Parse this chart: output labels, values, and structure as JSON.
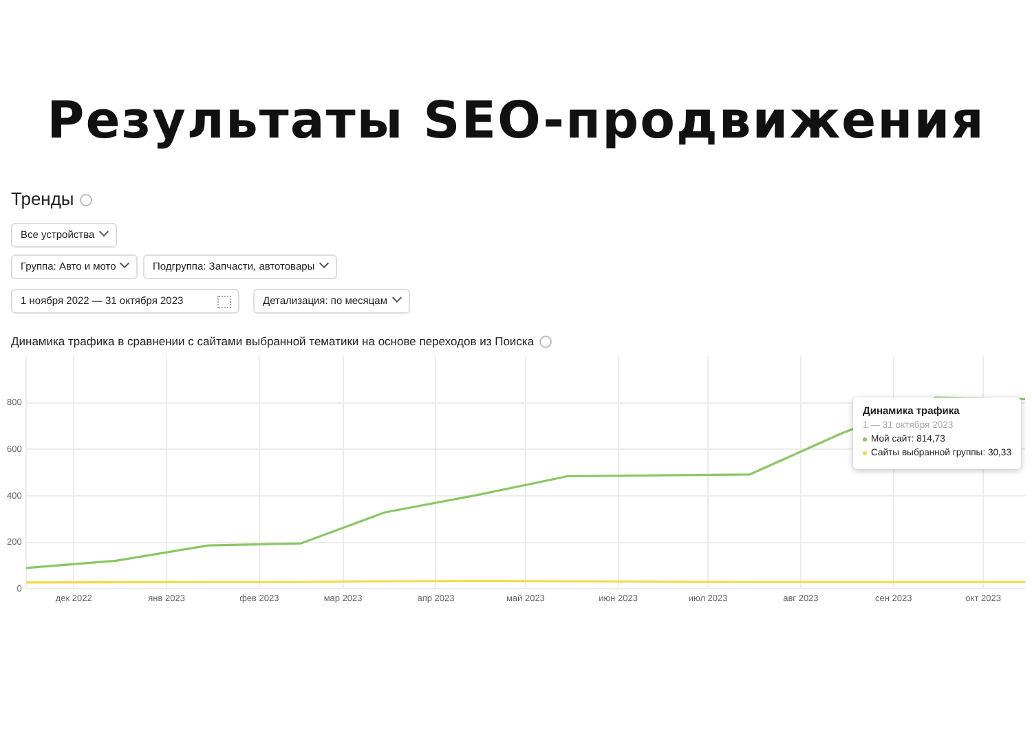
{
  "chart_data": {
    "type": "line",
    "title": "Результаты SEO-продвижения",
    "subtitle": "Тренды",
    "annotations": [
      "Все устройства",
      "Группа: Авто и мото",
      "Подгруппа: Запчасти, автотовары",
      "1 ноября 2022 — 31 октября 2023",
      "Детализация: по месяцам",
      "Динамика трафика в сравнении с сайтами выбранной тематики на основе переходов из Поиска",
      "Динамика трафика",
      "1 — 31 октября 2023",
      "Мой сайт: 814,73",
      "Сайты выбранной группы: 30,33"
    ],
    "grid": true,
    "x": [
      "2022-11-15",
      "2022-12-15",
      "2023-01-15",
      "2023-02-15",
      "2023-03-15",
      "2023-04-15",
      "2023-05-15",
      "2023-06-15",
      "2023-07-15",
      "2023-08-15",
      "2023-09-15",
      "2023-10-15"
    ],
    "xlim": [
      "2022-11-15",
      "2023-10-15"
    ],
    "xticks": [
      {
        "value": "2022-12-01",
        "label": "дек 2022"
      },
      {
        "value": "2023-01-01",
        "label": "янв 2023"
      },
      {
        "value": "2023-02-01",
        "label": "фев 2023"
      },
      {
        "value": "2023-03-01",
        "label": "мар 2023"
      },
      {
        "value": "2023-04-01",
        "label": "апр 2023"
      },
      {
        "value": "2023-05-01",
        "label": "май 2023"
      },
      {
        "value": "2023-06-01",
        "label": "июн 2023"
      },
      {
        "value": "2023-07-01",
        "label": "июл 2023"
      },
      {
        "value": "2023-08-01",
        "label": "авг 2023"
      },
      {
        "value": "2023-09-01",
        "label": "сен 2023"
      },
      {
        "value": "2023-10-01",
        "label": "окт 2023"
      }
    ],
    "ylim": [
      0,
      1000
    ],
    "yticks": [
      0,
      200,
      400,
      600,
      800
    ],
    "series": [
      {
        "color": "#8cc665",
        "values": [
          90,
          121,
          187,
          196,
          329,
          404,
          484,
          488,
          492,
          670,
          822,
          815
        ]
      },
      {
        "color": "#f5d94a",
        "values": [
          28,
          29,
          30,
          30,
          33,
          35,
          33,
          31,
          30,
          30,
          30,
          30
        ]
      }
    ]
  }
}
